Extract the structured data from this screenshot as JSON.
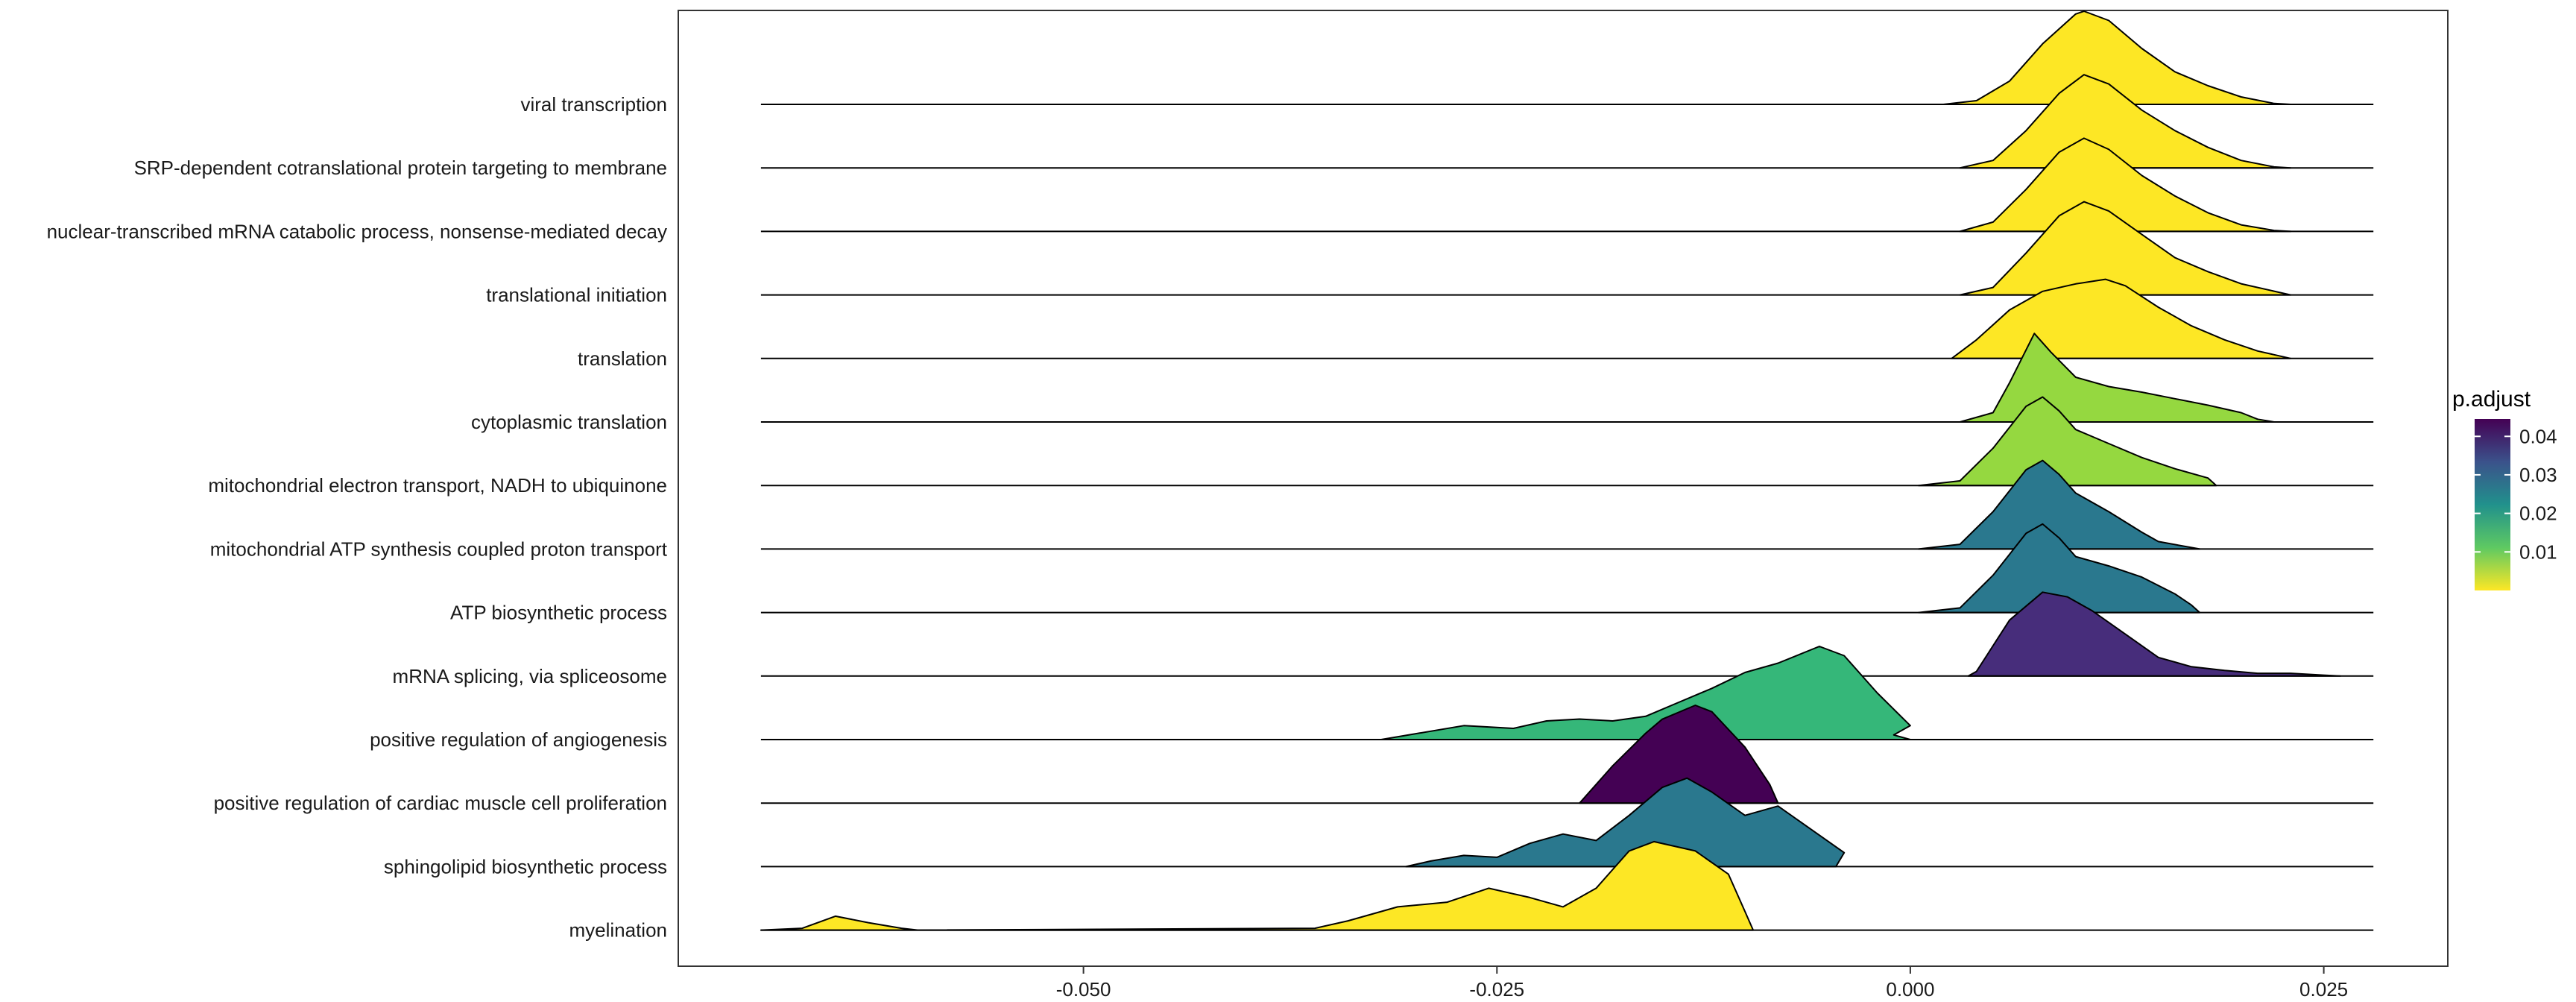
{
  "chart_data": {
    "type": "ridgeline",
    "x_ticks": [
      -0.05,
      -0.025,
      0.0,
      0.025
    ],
    "x_tick_labels": [
      "-0.050",
      "-0.025",
      "0.000",
      "0.025"
    ],
    "xlim": [
      -0.0745,
      0.0325
    ],
    "line_range": [
      -0.0695,
      0.028
    ],
    "legend": {
      "title": "p.adjust",
      "ticks": [
        0.01,
        0.02,
        0.03,
        0.04
      ],
      "tick_labels": [
        "0.01",
        "0.02",
        "0.03",
        "0.04"
      ],
      "range": [
        0.0,
        0.0445
      ],
      "low_color": "#FDE725",
      "high_color": "#440154",
      "position": "right"
    },
    "series": [
      {
        "name": "viral transcription",
        "p_adjust": 0.0005,
        "color": "#FDE725",
        "points": [
          [
            0.002,
            0
          ],
          [
            0.004,
            0.04
          ],
          [
            0.006,
            0.25
          ],
          [
            0.008,
            0.65
          ],
          [
            0.01,
            0.97
          ],
          [
            0.0105,
            1.0
          ],
          [
            0.012,
            0.9
          ],
          [
            0.014,
            0.6
          ],
          [
            0.016,
            0.35
          ],
          [
            0.018,
            0.2
          ],
          [
            0.02,
            0.08
          ],
          [
            0.022,
            0.01
          ],
          [
            0.023,
            0
          ]
        ]
      },
      {
        "name": "SRP-dependent cotranslational protein targeting to membrane",
        "p_adjust": 0.0005,
        "color": "#FDE725",
        "points": [
          [
            0.003,
            0
          ],
          [
            0.005,
            0.08
          ],
          [
            0.007,
            0.4
          ],
          [
            0.009,
            0.8
          ],
          [
            0.0105,
            1.0
          ],
          [
            0.012,
            0.9
          ],
          [
            0.014,
            0.62
          ],
          [
            0.016,
            0.4
          ],
          [
            0.018,
            0.22
          ],
          [
            0.02,
            0.08
          ],
          [
            0.022,
            0.01
          ],
          [
            0.023,
            0
          ]
        ]
      },
      {
        "name": "nuclear-transcribed mRNA catabolic process, nonsense-mediated decay",
        "p_adjust": 0.0005,
        "color": "#FDE725",
        "points": [
          [
            0.003,
            0
          ],
          [
            0.005,
            0.1
          ],
          [
            0.007,
            0.45
          ],
          [
            0.009,
            0.85
          ],
          [
            0.0105,
            1.0
          ],
          [
            0.012,
            0.88
          ],
          [
            0.014,
            0.6
          ],
          [
            0.016,
            0.38
          ],
          [
            0.018,
            0.2
          ],
          [
            0.02,
            0.07
          ],
          [
            0.022,
            0.01
          ],
          [
            0.023,
            0
          ]
        ]
      },
      {
        "name": "translational initiation",
        "p_adjust": 0.0005,
        "color": "#FDE725",
        "points": [
          [
            0.003,
            0
          ],
          [
            0.005,
            0.08
          ],
          [
            0.007,
            0.45
          ],
          [
            0.009,
            0.85
          ],
          [
            0.0105,
            1.0
          ],
          [
            0.012,
            0.9
          ],
          [
            0.014,
            0.65
          ],
          [
            0.016,
            0.4
          ],
          [
            0.018,
            0.25
          ],
          [
            0.02,
            0.12
          ],
          [
            0.022,
            0.04
          ],
          [
            0.023,
            0
          ]
        ]
      },
      {
        "name": "translation",
        "p_adjust": 0.0005,
        "color": "#FDE725",
        "points": [
          [
            0.0025,
            0
          ],
          [
            0.004,
            0.2
          ],
          [
            0.006,
            0.52
          ],
          [
            0.008,
            0.72
          ],
          [
            0.01,
            0.8
          ],
          [
            0.0118,
            0.85
          ],
          [
            0.013,
            0.78
          ],
          [
            0.015,
            0.55
          ],
          [
            0.017,
            0.35
          ],
          [
            0.019,
            0.2
          ],
          [
            0.021,
            0.08
          ],
          [
            0.023,
            0
          ]
        ]
      },
      {
        "name": "cytoplasmic translation",
        "p_adjust": 0.0065,
        "color": "#95D840",
        "points": [
          [
            0.003,
            0
          ],
          [
            0.005,
            0.1
          ],
          [
            0.006,
            0.42
          ],
          [
            0.0075,
            0.95
          ],
          [
            0.0085,
            0.75
          ],
          [
            0.01,
            0.48
          ],
          [
            0.012,
            0.38
          ],
          [
            0.014,
            0.32
          ],
          [
            0.016,
            0.25
          ],
          [
            0.018,
            0.18
          ],
          [
            0.02,
            0.1
          ],
          [
            0.021,
            0.03
          ],
          [
            0.022,
            0
          ]
        ]
      },
      {
        "name": "mitochondrial electron transport, NADH to ubiquinone",
        "p_adjust": 0.0085,
        "color": "#95D840",
        "points": [
          [
            0.0005,
            0
          ],
          [
            0.003,
            0.05
          ],
          [
            0.005,
            0.4
          ],
          [
            0.007,
            0.85
          ],
          [
            0.008,
            0.95
          ],
          [
            0.009,
            0.8
          ],
          [
            0.01,
            0.6
          ],
          [
            0.012,
            0.45
          ],
          [
            0.014,
            0.3
          ],
          [
            0.016,
            0.18
          ],
          [
            0.018,
            0.08
          ],
          [
            0.0185,
            0
          ]
        ]
      },
      {
        "name": "mitochondrial ATP synthesis coupled proton transport",
        "p_adjust": 0.028,
        "color": "#2A788E",
        "points": [
          [
            0.0005,
            0
          ],
          [
            0.003,
            0.05
          ],
          [
            0.005,
            0.4
          ],
          [
            0.007,
            0.85
          ],
          [
            0.008,
            0.95
          ],
          [
            0.009,
            0.8
          ],
          [
            0.01,
            0.6
          ],
          [
            0.012,
            0.4
          ],
          [
            0.014,
            0.18
          ],
          [
            0.015,
            0.08
          ],
          [
            0.0175,
            0
          ]
        ]
      },
      {
        "name": "ATP biosynthetic process",
        "p_adjust": 0.028,
        "color": "#2A788E",
        "points": [
          [
            0.0005,
            0
          ],
          [
            0.003,
            0.05
          ],
          [
            0.005,
            0.4
          ],
          [
            0.007,
            0.85
          ],
          [
            0.008,
            0.95
          ],
          [
            0.009,
            0.8
          ],
          [
            0.01,
            0.6
          ],
          [
            0.012,
            0.5
          ],
          [
            0.014,
            0.38
          ],
          [
            0.016,
            0.2
          ],
          [
            0.017,
            0.08
          ],
          [
            0.0175,
            0
          ]
        ]
      },
      {
        "name": "mRNA splicing, via spliceosome",
        "p_adjust": 0.04,
        "color": "#472D7B",
        "points": [
          [
            0.0035,
            0
          ],
          [
            0.004,
            0.05
          ],
          [
            0.006,
            0.6
          ],
          [
            0.008,
            0.9
          ],
          [
            0.0095,
            0.85
          ],
          [
            0.011,
            0.7
          ],
          [
            0.013,
            0.45
          ],
          [
            0.015,
            0.2
          ],
          [
            0.017,
            0.1
          ],
          [
            0.019,
            0.06
          ],
          [
            0.021,
            0.03
          ],
          [
            0.023,
            0.03
          ],
          [
            0.025,
            0.01
          ],
          [
            0.026,
            0
          ]
        ]
      },
      {
        "name": "positive regulation of angiogenesis",
        "p_adjust": 0.015,
        "color": "#35B779",
        "points": [
          [
            -0.032,
            0
          ],
          [
            -0.03,
            0.06
          ],
          [
            -0.027,
            0.15
          ],
          [
            -0.024,
            0.12
          ],
          [
            -0.022,
            0.2
          ],
          [
            -0.02,
            0.22
          ],
          [
            -0.018,
            0.2
          ],
          [
            -0.016,
            0.25
          ],
          [
            -0.014,
            0.4
          ],
          [
            -0.012,
            0.55
          ],
          [
            -0.01,
            0.72
          ],
          [
            -0.008,
            0.82
          ],
          [
            -0.0055,
            1.0
          ],
          [
            -0.004,
            0.9
          ],
          [
            -0.002,
            0.5
          ],
          [
            0.0,
            0.15
          ],
          [
            -0.001,
            0.05
          ],
          [
            0.0,
            0
          ]
        ]
      },
      {
        "name": "positive regulation of cardiac muscle cell proliferation",
        "p_adjust": 0.0445,
        "color": "#440154",
        "points": [
          [
            -0.02,
            0
          ],
          [
            -0.018,
            0.4
          ],
          [
            -0.016,
            0.75
          ],
          [
            -0.015,
            0.9
          ],
          [
            -0.013,
            1.05
          ],
          [
            -0.012,
            0.98
          ],
          [
            -0.01,
            0.6
          ],
          [
            -0.0085,
            0.2
          ],
          [
            -0.008,
            0
          ]
        ]
      },
      {
        "name": "sphingolipid biosynthetic process",
        "p_adjust": 0.028,
        "color": "#2A788E",
        "points": [
          [
            -0.0305,
            0
          ],
          [
            -0.029,
            0.06
          ],
          [
            -0.027,
            0.12
          ],
          [
            -0.025,
            0.1
          ],
          [
            -0.023,
            0.25
          ],
          [
            -0.021,
            0.35
          ],
          [
            -0.019,
            0.28
          ],
          [
            -0.017,
            0.55
          ],
          [
            -0.015,
            0.85
          ],
          [
            -0.0135,
            0.95
          ],
          [
            -0.012,
            0.8
          ],
          [
            -0.01,
            0.55
          ],
          [
            -0.008,
            0.65
          ],
          [
            -0.006,
            0.4
          ],
          [
            -0.004,
            0.15
          ],
          [
            -0.0045,
            0
          ]
        ]
      },
      {
        "name": "myelination",
        "p_adjust": 0.0005,
        "color": "#FDE725",
        "points": [
          [
            -0.0695,
            0
          ],
          [
            -0.067,
            0.02
          ],
          [
            -0.065,
            0.15
          ],
          [
            -0.063,
            0.08
          ],
          [
            -0.061,
            0.02
          ],
          [
            -0.06,
            0
          ],
          [
            -0.036,
            0.02
          ],
          [
            -0.034,
            0.1
          ],
          [
            -0.031,
            0.25
          ],
          [
            -0.028,
            0.3
          ],
          [
            -0.0255,
            0.45
          ],
          [
            -0.023,
            0.35
          ],
          [
            -0.021,
            0.25
          ],
          [
            -0.019,
            0.45
          ],
          [
            -0.017,
            0.85
          ],
          [
            -0.0155,
            0.95
          ],
          [
            -0.013,
            0.85
          ],
          [
            -0.011,
            0.6
          ],
          [
            -0.01,
            0.2
          ],
          [
            -0.0095,
            0
          ]
        ]
      }
    ]
  }
}
